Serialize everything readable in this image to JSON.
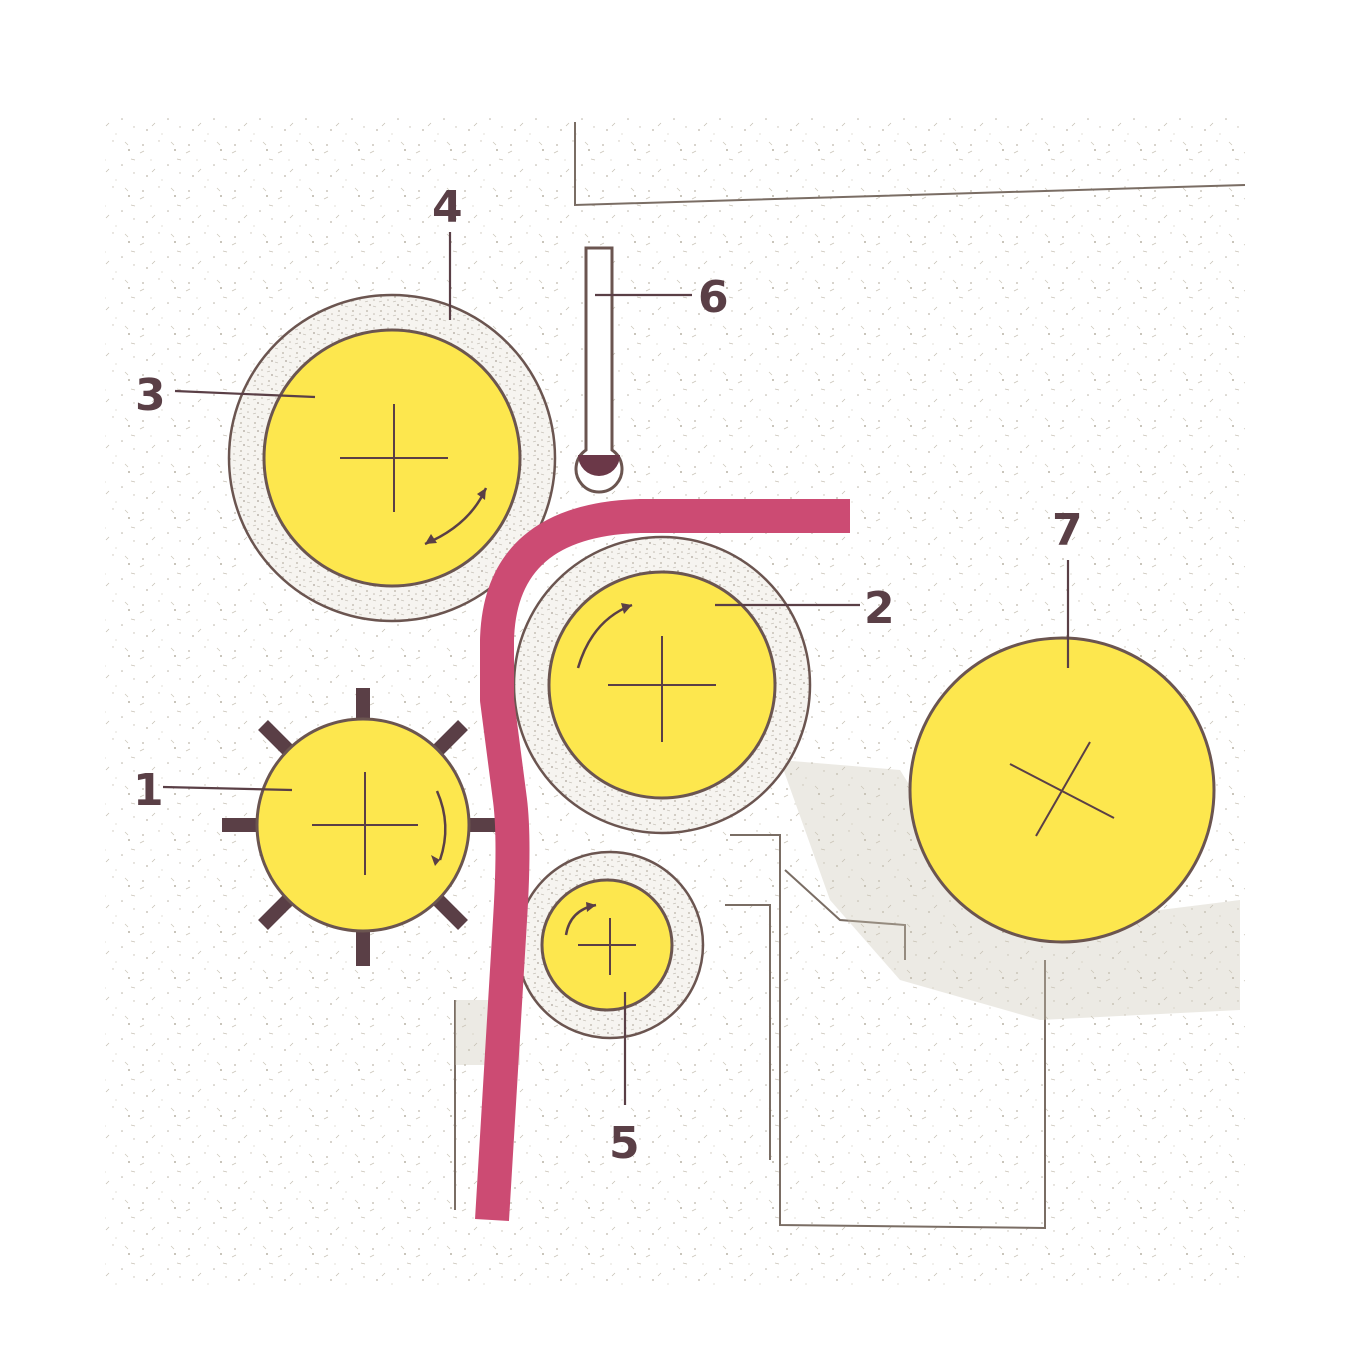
{
  "colors": {
    "background": "#ffffff",
    "paper_speckle": "#b8b2a6",
    "roller_fill": "#fde74e",
    "roller_outline": "#6b5550",
    "coating_ring": "#f4f1ec",
    "web_strip": "#cc4b73",
    "lead_line": "#5a3f46",
    "label_text": "#5a3f46"
  },
  "labels": {
    "one": "1",
    "two": "2",
    "three": "3",
    "four": "4",
    "five": "5",
    "six": "6",
    "seven": "7"
  },
  "components": {
    "roller_1": {
      "label": "1",
      "icon": "gear-roller-icon",
      "rotation": "clockwise"
    },
    "roller_2": {
      "label": "2",
      "icon": "coated-roller-icon",
      "rotation": "counterclockwise"
    },
    "roller_3": {
      "label": "3",
      "icon": "coated-roller-icon",
      "rotation": "clockwise"
    },
    "coating_4": {
      "label": "4",
      "icon": "coating-layer-icon"
    },
    "roller_5": {
      "label": "5",
      "icon": "coated-roller-icon",
      "rotation": "counterclockwise"
    },
    "sensor_6": {
      "label": "6",
      "icon": "thermometer-icon"
    },
    "roller_7": {
      "label": "7",
      "icon": "roller-x-icon"
    }
  }
}
